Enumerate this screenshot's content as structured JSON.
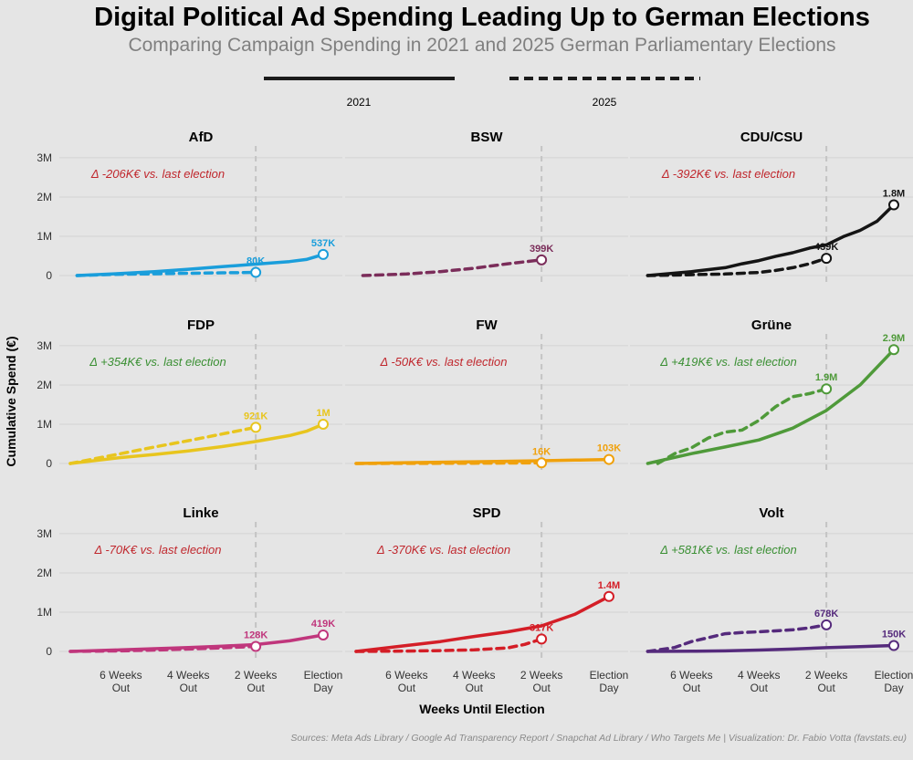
{
  "title": "Digital Political Ad Spending Leading Up to German Elections",
  "subtitle": "Comparing Campaign Spending in 2021 and 2025 German Parliamentary Elections",
  "legend": {
    "items": [
      {
        "label": "2021",
        "style": "solid"
      },
      {
        "label": "2025",
        "style": "dashed"
      }
    ]
  },
  "footer": "Sources: Meta Ads Library / Google Ad Transparency Report / Snapchat Ad Library / Who Targets Me | Visualization: Dr. Fabio Votta (favstats.eu)",
  "chart_data": {
    "type": "line",
    "title": "Digital Political Ad Spending Leading Up to German Elections",
    "xlabel": "Weeks Until Election",
    "ylabel": "Cumulative Spend (€)",
    "x_range_weeks_before_election": [
      -7.5,
      0
    ],
    "x_ticks": [
      {
        "value": -6,
        "label": "6 Weeks\nOut"
      },
      {
        "value": -4,
        "label": "4 Weeks\nOut"
      },
      {
        "value": -2,
        "label": "2 Weeks\nOut"
      },
      {
        "value": 0,
        "label": "Election\nDay"
      }
    ],
    "y_ticks": [
      {
        "value": 0,
        "label": "0"
      },
      {
        "value": 1000000,
        "label": "1M"
      },
      {
        "value": 2000000,
        "label": "2M"
      },
      {
        "value": 3000000,
        "label": "3M"
      }
    ],
    "ylim": [
      0,
      3300000
    ],
    "reference_line_x": -2,
    "panels": [
      {
        "party": "AfD",
        "color": "#1a9edb",
        "delta_label": "Δ -206K€ vs. last election",
        "delta_color": "#c0272d",
        "series_2021": {
          "x": [
            -7.3,
            -6,
            -5,
            -4,
            -3,
            -2,
            -1,
            -0.5,
            0
          ],
          "y": [
            0,
            50000,
            100000,
            160000,
            225000,
            290000,
            355000,
            410000,
            537000
          ]
        },
        "series_2025": {
          "x": [
            -7.3,
            -6.5,
            -6,
            -5,
            -4,
            -3,
            -2
          ],
          "y": [
            0,
            20000,
            32000,
            45000,
            58000,
            70000,
            80000
          ]
        },
        "end_2021_label": "537K",
        "end_2025_label": "80K"
      },
      {
        "party": "BSW",
        "color": "#7b2d5a",
        "delta_label": "",
        "delta_color": "#c0272d",
        "series_2021": null,
        "series_2025": {
          "x": [
            -7.3,
            -6,
            -5,
            -4,
            -3,
            -2
          ],
          "y": [
            0,
            40000,
            100000,
            185000,
            300000,
            399000
          ]
        },
        "end_2021_label": "",
        "end_2025_label": "399K"
      },
      {
        "party": "CDU/CSU",
        "color": "#151515",
        "delta_label": "Δ -392K€ vs. last election",
        "delta_color": "#c0272d",
        "series_2021": {
          "x": [
            -7.3,
            -6,
            -5,
            -4.5,
            -4,
            -3.5,
            -3,
            -2.5,
            -2,
            -1.5,
            -1,
            -0.5,
            0
          ],
          "y": [
            0,
            100000,
            200000,
            300000,
            380000,
            490000,
            580000,
            700000,
            780000,
            990000,
            1150000,
            1380000,
            1800000
          ]
        },
        "series_2025": {
          "x": [
            -7.3,
            -6,
            -5,
            -4,
            -3.5,
            -3,
            -2.5,
            -2
          ],
          "y": [
            0,
            20000,
            40000,
            80000,
            130000,
            200000,
            300000,
            439000
          ]
        },
        "end_2021_label": "1.8M",
        "end_2025_label": "439K"
      },
      {
        "party": "FDP",
        "color": "#e8c51e",
        "delta_label": "Δ +354K€ vs. last election",
        "delta_color": "#3a8f33",
        "series_2021": {
          "x": [
            -7.5,
            -6,
            -5,
            -4,
            -3,
            -2,
            -1,
            -0.5,
            0
          ],
          "y": [
            0,
            150000,
            230000,
            320000,
            430000,
            560000,
            710000,
            820000,
            1000000
          ]
        },
        "series_2025": {
          "x": [
            -7.5,
            -6,
            -5,
            -4,
            -3,
            -2
          ],
          "y": [
            0,
            250000,
            420000,
            580000,
            750000,
            921000
          ]
        },
        "end_2021_label": "1M",
        "end_2025_label": "921K"
      },
      {
        "party": "FW",
        "color": "#f0a10c",
        "delta_label": "Δ -50K€ vs. last election",
        "delta_color": "#c0272d",
        "series_2021": {
          "x": [
            -7.5,
            -6,
            -4,
            -2,
            -1,
            0
          ],
          "y": [
            0,
            20000,
            45000,
            70000,
            85000,
            103000
          ]
        },
        "series_2025": {
          "x": [
            -7.5,
            -6,
            -4,
            -3,
            -2
          ],
          "y": [
            0,
            3000,
            8000,
            12000,
            16000
          ]
        },
        "end_2021_label": "103K",
        "end_2025_label": "16K"
      },
      {
        "party": "Grüne",
        "color": "#4f9a3a",
        "delta_label": "Δ +419K€ vs. last election",
        "delta_color": "#3a8f33",
        "series_2021": {
          "x": [
            -7.3,
            -6,
            -5,
            -4,
            -3,
            -2,
            -1,
            0
          ],
          "y": [
            0,
            250000,
            420000,
            600000,
            900000,
            1350000,
            2000000,
            2900000
          ]
        },
        "series_2025": {
          "x": [
            -7,
            -6.5,
            -6,
            -5.5,
            -5,
            -4.5,
            -4,
            -3.5,
            -3,
            -2.5,
            -2
          ],
          "y": [
            0,
            250000,
            400000,
            650000,
            800000,
            850000,
            1100000,
            1450000,
            1700000,
            1780000,
            1900000
          ]
        },
        "end_2021_label": "2.9M",
        "end_2025_label": "1.9M"
      },
      {
        "party": "Linke",
        "color": "#c0367c",
        "delta_label": "Δ -70K€ vs. last election",
        "delta_color": "#c0272d",
        "series_2021": {
          "x": [
            -7.5,
            -6,
            -5,
            -4,
            -3,
            -2,
            -1,
            0
          ],
          "y": [
            0,
            40000,
            70000,
            100000,
            135000,
            175000,
            270000,
            419000
          ]
        },
        "series_2025": {
          "x": [
            -7.5,
            -6,
            -5,
            -4,
            -3,
            -2
          ],
          "y": [
            0,
            15000,
            35000,
            60000,
            90000,
            128000
          ]
        },
        "end_2021_label": "419K",
        "end_2025_label": "128K"
      },
      {
        "party": "SPD",
        "color": "#d41e27",
        "delta_label": "Δ -370K€ vs. last election",
        "delta_color": "#c0272d",
        "series_2021": {
          "x": [
            -7.5,
            -6,
            -5,
            -4,
            -3,
            -2,
            -1,
            0
          ],
          "y": [
            0,
            150000,
            250000,
            380000,
            500000,
            650000,
            950000,
            1400000
          ]
        },
        "series_2025": {
          "x": [
            -7.5,
            -6,
            -5,
            -4,
            -3,
            -2.5,
            -2
          ],
          "y": [
            0,
            10000,
            20000,
            40000,
            90000,
            180000,
            317000
          ]
        },
        "end_2021_label": "1.4M",
        "end_2025_label": "317K"
      },
      {
        "party": "Volt",
        "color": "#552a7c",
        "delta_label": "Δ +581K€ vs. last election",
        "delta_color": "#3a8f33",
        "series_2021": {
          "x": [
            -7.3,
            -6,
            -5,
            -4,
            -3,
            -2,
            -1,
            0
          ],
          "y": [
            0,
            5000,
            15000,
            35000,
            60000,
            95000,
            120000,
            150000
          ]
        },
        "series_2025": {
          "x": [
            -7.3,
            -6.5,
            -6,
            -5,
            -4.5,
            -4,
            -3,
            -2.5,
            -2
          ],
          "y": [
            0,
            100000,
            250000,
            450000,
            480000,
            500000,
            550000,
            600000,
            678000
          ]
        },
        "end_2021_label": "150K",
        "end_2025_label": "678K"
      }
    ]
  }
}
